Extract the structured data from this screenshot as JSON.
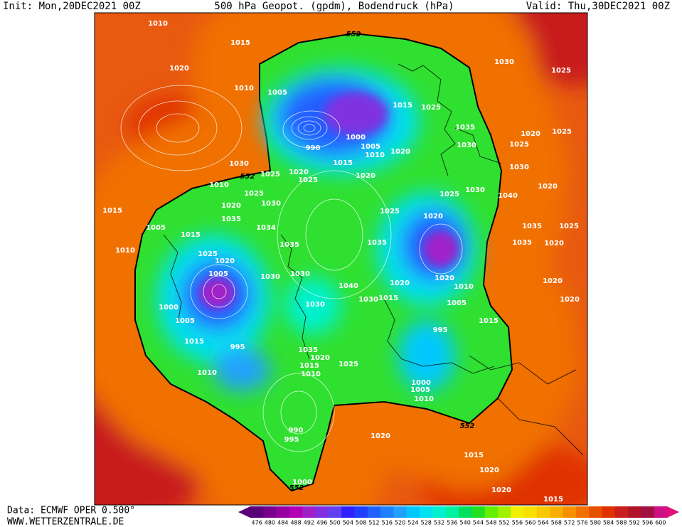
{
  "header": {
    "init": "Init: Mon,20DEC2021 00Z",
    "title": "500 hPa Geopot. (gpdm), Bodendruck (hPa)",
    "valid": "Valid: Thu,30DEC2021 00Z"
  },
  "footer": {
    "source": "Data: ECMWF OPER 0.500°",
    "site": "WWW.WETTERZENTRALE.DE"
  },
  "colorbar": {
    "labels": [
      476,
      480,
      484,
      488,
      492,
      496,
      500,
      504,
      508,
      512,
      516,
      520,
      524,
      528,
      532,
      536,
      540,
      544,
      548,
      552,
      556,
      560,
      564,
      568,
      572,
      576,
      580,
      584,
      588,
      592,
      596,
      600
    ],
    "colors": [
      "#5a0078",
      "#78008c",
      "#9600a0",
      "#b400b4",
      "#a020c8",
      "#8030e0",
      "#6040f0",
      "#3020ff",
      "#2040ff",
      "#2060ff",
      "#2080ff",
      "#20a0ff",
      "#00c8ff",
      "#00e0f0",
      "#00f0d0",
      "#00f0a0",
      "#00e060",
      "#20e020",
      "#60f000",
      "#a0f000",
      "#f0f000",
      "#f8e000",
      "#f8c800",
      "#f8b000",
      "#f89000",
      "#f07000",
      "#e85000",
      "#e03000",
      "#c81e1e",
      "#b01428",
      "#a01040",
      "#d01080"
    ]
  },
  "contour_labels": [
    "552",
    "552",
    "552",
    "552"
  ],
  "isobar_labels": [
    "1010",
    "1015",
    "1020",
    "1010",
    "1005",
    "1030",
    "1025",
    "1015",
    "1025",
    "1035",
    "1000",
    "1005",
    "1010",
    "1020",
    "990",
    "1015",
    "1020",
    "1020",
    "1025",
    "1030",
    "1025",
    "1010",
    "1025",
    "1030",
    "1020",
    "1035",
    "1034",
    "1025",
    "1020",
    "1025",
    "1030",
    "1040",
    "1020",
    "1030",
    "1030",
    "1025",
    "1020",
    "1025",
    "1015",
    "1005",
    "1015",
    "1010",
    "1025",
    "1020",
    "1035",
    "1035",
    "1005",
    "1030",
    "1030",
    "1040",
    "1020",
    "1020",
    "1010",
    "1030",
    "1015",
    "1030",
    "1000",
    "1005",
    "1005",
    "1015",
    "995",
    "1035",
    "1020",
    "1015",
    "1010",
    "1025",
    "995",
    "1015",
    "1010",
    "1000",
    "1005",
    "1010",
    "1020",
    "990",
    "995",
    "1015",
    "1020",
    "1020",
    "1015",
    "1000",
    "1035",
    "1025",
    "1035",
    "1020",
    "1020",
    "1020"
  ]
}
